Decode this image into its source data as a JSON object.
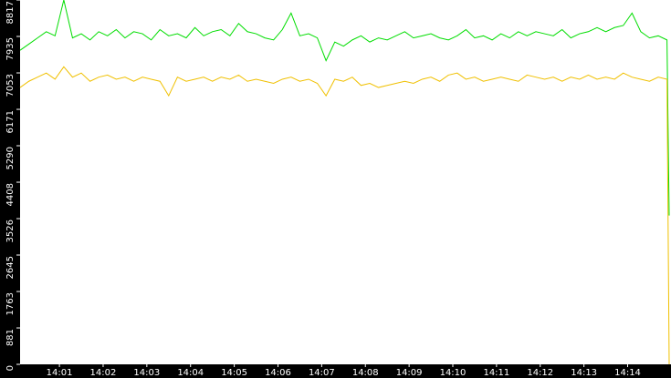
{
  "chart_data": {
    "type": "line",
    "x": [
      0.1,
      0.3,
      0.5,
      0.7,
      0.9,
      1.1,
      1.3,
      1.5,
      1.7,
      1.9,
      2.1,
      2.3,
      2.5,
      2.7,
      2.9,
      3.1,
      3.3,
      3.5,
      3.7,
      3.9,
      4.1,
      4.3,
      4.5,
      4.7,
      4.9,
      5.1,
      5.3,
      5.5,
      5.7,
      5.9,
      6.1,
      6.3,
      6.5,
      6.7,
      6.9,
      7.1,
      7.3,
      7.5,
      7.7,
      7.9,
      8.1,
      8.3,
      8.5,
      8.7,
      8.9,
      9.1,
      9.3,
      9.5,
      9.7,
      9.9,
      10.1,
      10.3,
      10.5,
      10.7,
      10.9,
      11.1,
      11.3,
      11.5,
      11.7,
      11.9,
      12.1,
      12.3,
      12.5,
      12.7,
      12.9,
      13.1,
      13.3,
      13.5,
      13.7,
      13.9,
      14.1,
      14.3,
      14.5,
      14.7,
      14.9,
      14.95
    ],
    "series": [
      {
        "name": "green",
        "color": "#00dd00",
        "values": [
          7600,
          7750,
          7900,
          8050,
          7950,
          8817,
          7900,
          8000,
          7850,
          8050,
          7950,
          8100,
          7900,
          8050,
          8000,
          7850,
          8100,
          7950,
          8000,
          7900,
          8150,
          7950,
          8050,
          8100,
          7950,
          8250,
          8050,
          8000,
          7900,
          7850,
          8100,
          8500,
          7950,
          8000,
          7900,
          7350,
          7800,
          7700,
          7850,
          7950,
          7800,
          7900,
          7850,
          7950,
          8050,
          7900,
          7950,
          8000,
          7900,
          7850,
          7950,
          8100,
          7900,
          7950,
          7850,
          8000,
          7900,
          8050,
          7950,
          8050,
          8000,
          7950,
          8100,
          7900,
          8000,
          8050,
          8150,
          8050,
          8150,
          8200,
          8500,
          8050,
          7900,
          7950,
          7850,
          3600
        ]
      },
      {
        "name": "yellow",
        "color": "#f0c000",
        "values": [
          6700,
          6850,
          6950,
          7050,
          6900,
          7200,
          6950,
          7050,
          6850,
          6950,
          7000,
          6900,
          6950,
          6850,
          6950,
          6900,
          6850,
          6500,
          6950,
          6850,
          6900,
          6950,
          6850,
          6950,
          6900,
          7000,
          6850,
          6900,
          6850,
          6800,
          6900,
          6950,
          6850,
          6900,
          6800,
          6500,
          6900,
          6850,
          6950,
          6750,
          6800,
          6700,
          6750,
          6800,
          6850,
          6800,
          6900,
          6950,
          6850,
          7000,
          7050,
          6900,
          6950,
          6850,
          6900,
          6950,
          6900,
          6850,
          7000,
          6950,
          6900,
          6950,
          6850,
          6950,
          6900,
          7000,
          6900,
          6950,
          6900,
          7050,
          6950,
          6900,
          6850,
          6950,
          6900,
          0
        ]
      }
    ],
    "xlim": [
      0.1,
      14.95
    ],
    "ylim": [
      0,
      8817
    ],
    "yticks": [
      0,
      881,
      1763,
      2645,
      3526,
      4408,
      5290,
      6171,
      7053,
      7935,
      8817
    ],
    "xticks": [
      {
        "value": 1,
        "label": "14:01"
      },
      {
        "value": 2,
        "label": "14:02"
      },
      {
        "value": 3,
        "label": "14:03"
      },
      {
        "value": 4,
        "label": "14:04"
      },
      {
        "value": 5,
        "label": "14:05"
      },
      {
        "value": 6,
        "label": "14:06"
      },
      {
        "value": 7,
        "label": "14:07"
      },
      {
        "value": 8,
        "label": "14:08"
      },
      {
        "value": 9,
        "label": "14:09"
      },
      {
        "value": 10,
        "label": "14:10"
      },
      {
        "value": 11,
        "label": "14:11"
      },
      {
        "value": 12,
        "label": "14:12"
      },
      {
        "value": 13,
        "label": "14:13"
      },
      {
        "value": 14,
        "label": "14:14"
      }
    ],
    "grid": false
  }
}
